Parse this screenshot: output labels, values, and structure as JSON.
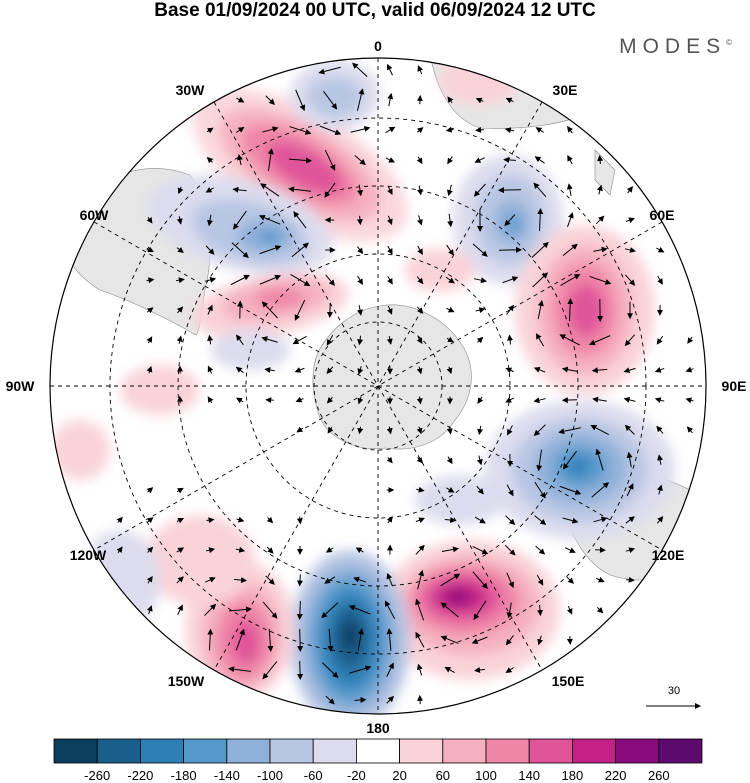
{
  "title": "Base 01/09/2024 00 UTC, valid 06/09/2024 12 UTC",
  "brand": "MODES",
  "brand_mark": "©",
  "longitude_labels": {
    "n0": "0",
    "e30": "30E",
    "e60": "60E",
    "e90": "90E",
    "e120": "120E",
    "e150": "150E",
    "s180": "180",
    "w150": "150W",
    "w120": "120W",
    "w90": "90W",
    "w60": "60W",
    "w30": "30W"
  },
  "reference_vector": {
    "value": "30"
  },
  "colorbar": {
    "ticks": [
      "-260",
      "-220",
      "-180",
      "-140",
      "-100",
      "-60",
      "-20",
      "20",
      "60",
      "100",
      "140",
      "180",
      "220",
      "260"
    ],
    "colors": [
      "#0d3d5e",
      "#1a5f8c",
      "#2d7fb5",
      "#5599cc",
      "#8fb0d9",
      "#b8c6e3",
      "#dcdcee",
      "#ffffff",
      "#f9d3d8",
      "#f5b0bf",
      "#ef85a7",
      "#e0559a",
      "#c42088",
      "#8a0b7d",
      "#5c0a6e"
    ]
  },
  "anomaly_centers": [
    {
      "value": 180,
      "label": "pink-30W"
    },
    {
      "value": -180,
      "label": "blue-60W"
    },
    {
      "value": -140,
      "label": "blue-0E"
    },
    {
      "value": -140,
      "label": "blue-30E"
    },
    {
      "value": 180,
      "label": "pink-60E"
    },
    {
      "value": -180,
      "label": "blue-100E"
    },
    {
      "value": 220,
      "label": "pink-150E"
    },
    {
      "value": -260,
      "label": "blue-180"
    },
    {
      "value": 180,
      "label": "pink-150W"
    },
    {
      "value": 140,
      "label": "pink-75W"
    }
  ]
}
